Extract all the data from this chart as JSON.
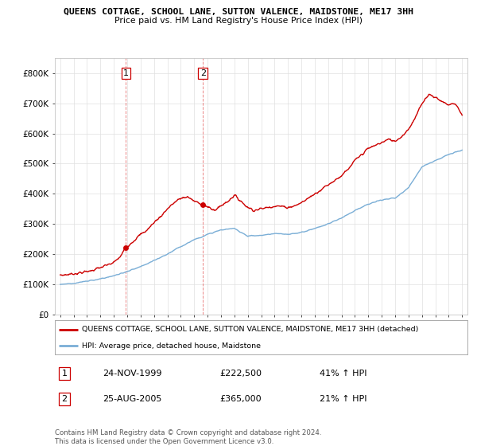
{
  "title": "QUEENS COTTAGE, SCHOOL LANE, SUTTON VALENCE, MAIDSTONE, ME17 3HH",
  "subtitle": "Price paid vs. HM Land Registry's House Price Index (HPI)",
  "legend_line1": "QUEENS COTTAGE, SCHOOL LANE, SUTTON VALENCE, MAIDSTONE, ME17 3HH (detached)",
  "legend_line2": "HPI: Average price, detached house, Maidstone",
  "transaction1_date": "24-NOV-1999",
  "transaction1_price": "£222,500",
  "transaction1_hpi": "41% ↑ HPI",
  "transaction1_year": 1999.9,
  "transaction1_value": 222500,
  "transaction2_date": "25-AUG-2005",
  "transaction2_price": "£365,000",
  "transaction2_hpi": "21% ↑ HPI",
  "transaction2_year": 2005.65,
  "transaction2_value": 365000,
  "footnote": "Contains HM Land Registry data © Crown copyright and database right 2024.\nThis data is licensed under the Open Government Licence v3.0.",
  "red_color": "#cc0000",
  "blue_color": "#7aaed6",
  "background_color": "#ffffff",
  "grid_color": "#e0e0e0",
  "ylim": [
    0,
    850000
  ],
  "yticks": [
    0,
    100000,
    200000,
    300000,
    400000,
    500000,
    600000,
    700000,
    800000
  ],
  "ytick_labels": [
    "£0",
    "£100K",
    "£200K",
    "£300K",
    "£400K",
    "£500K",
    "£600K",
    "£700K",
    "£800K"
  ],
  "xmin": 1995,
  "xmax": 2025
}
